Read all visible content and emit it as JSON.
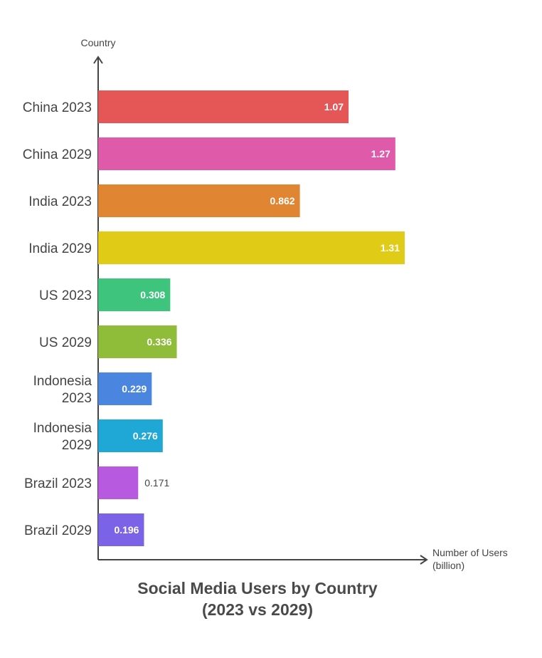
{
  "chart_data": {
    "type": "bar",
    "orientation": "horizontal",
    "title_lines": [
      "Social Media Users by Country",
      "(2023 vs 2029)"
    ],
    "ylabel": "Country",
    "xlabel_lines": [
      "Number of Users",
      "(billion)"
    ],
    "categories": [
      [
        "China 2023"
      ],
      [
        "China 2029"
      ],
      [
        "India 2023"
      ],
      [
        "India 2029"
      ],
      [
        "US 2023"
      ],
      [
        "US 2029"
      ],
      [
        "Indonesia",
        "2023"
      ],
      [
        "Indonesia",
        "2029"
      ],
      [
        "Brazil 2023"
      ],
      [
        "Brazil 2029"
      ]
    ],
    "values": [
      1.07,
      1.27,
      0.862,
      1.31,
      0.308,
      0.336,
      0.229,
      0.276,
      0.171,
      0.196
    ],
    "value_labels": [
      "1.07",
      "1.27",
      "0.862",
      "1.31",
      "0.308",
      "0.336",
      "0.229",
      "0.276",
      "0.171",
      "0.196"
    ],
    "colors": [
      "#e45756",
      "#e05aaa",
      "#e08532",
      "#e0cc17",
      "#3fc47e",
      "#8fbd3a",
      "#4a86e0",
      "#1fa8d6",
      "#b85ae0",
      "#7a63e6"
    ],
    "xlim": [
      0,
      1.31
    ],
    "grid": false,
    "legend": "none"
  }
}
